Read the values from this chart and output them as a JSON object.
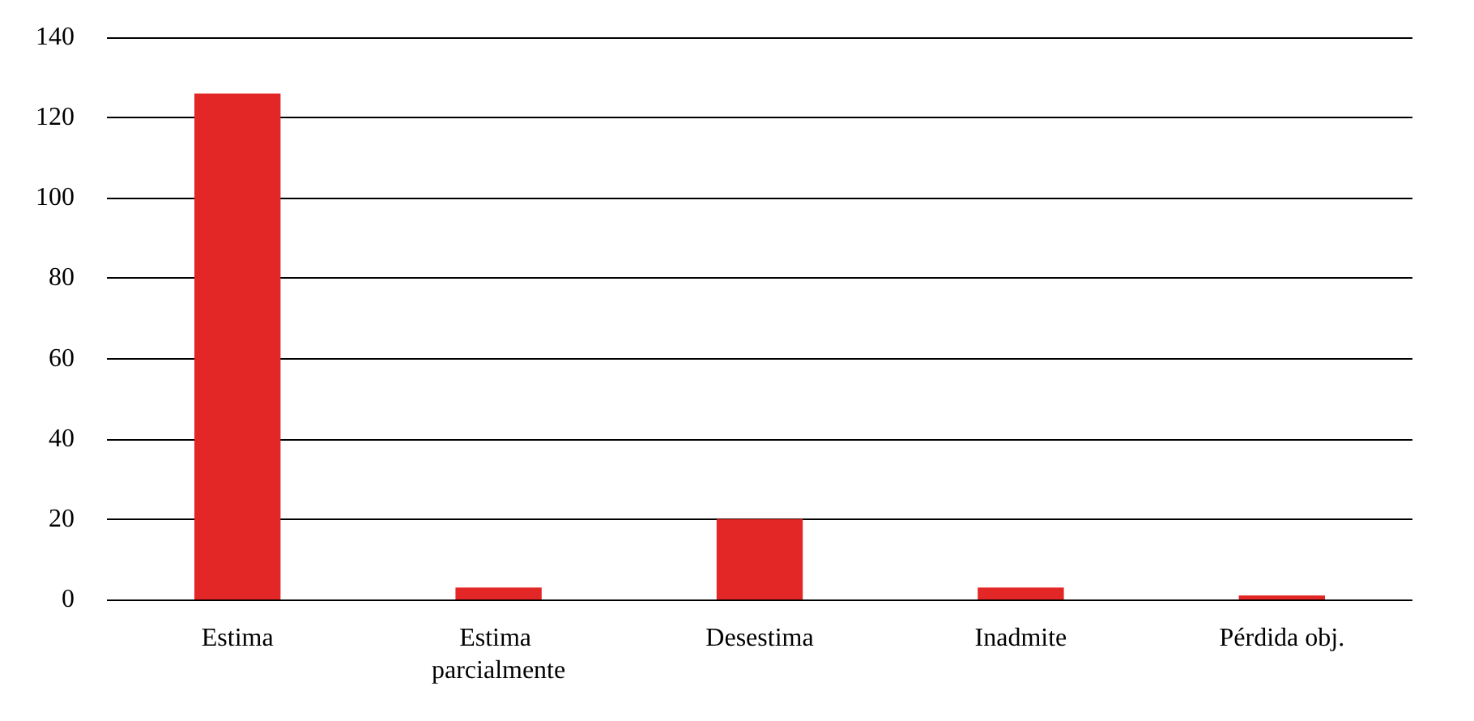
{
  "chart_data": {
    "type": "bar",
    "categories": [
      "Estima",
      "Estima parcialmente",
      "Desestima",
      "Inadmite",
      "Pérdida obj."
    ],
    "values": [
      126,
      3,
      20,
      3,
      1
    ],
    "color": "#e32726",
    "ylim": [
      0,
      140
    ],
    "yticks": [
      0,
      20,
      40,
      60,
      80,
      100,
      120,
      140
    ],
    "grid": true
  }
}
